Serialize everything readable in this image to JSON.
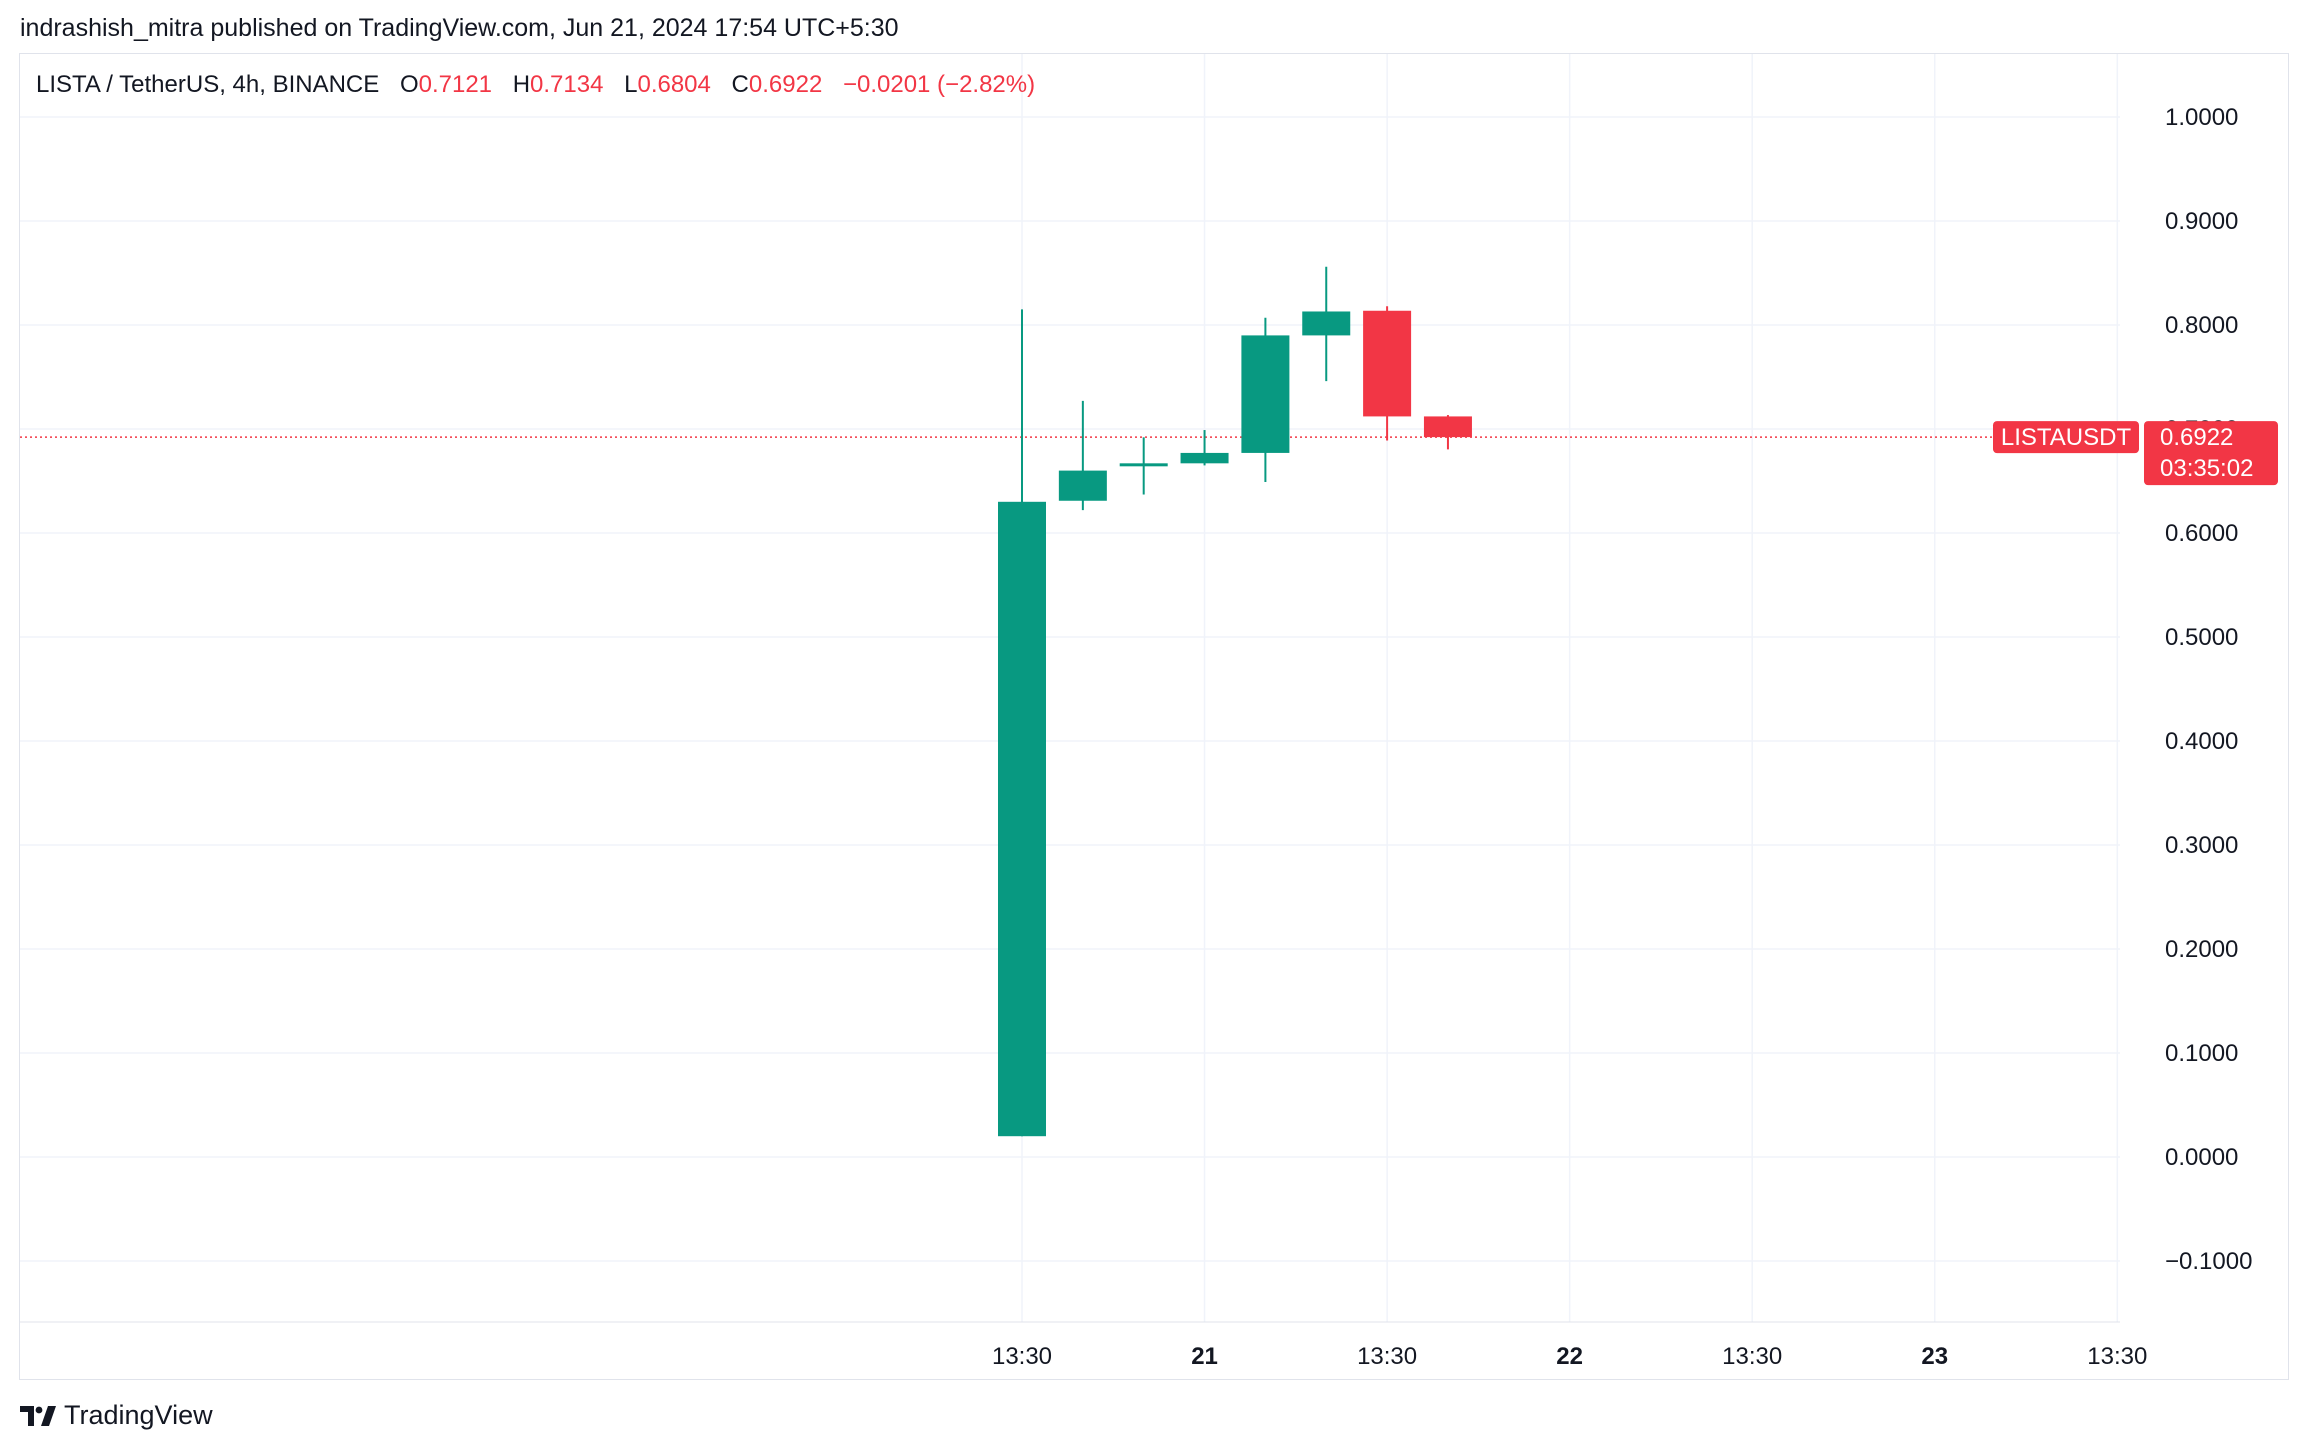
{
  "header": {
    "published_by": "indrashish_mitra published on TradingView.com, Jun 21, 2024 17:54 UTC+5:30"
  },
  "legend": {
    "symbol": "LISTA / TetherUS, 4h, BINANCE",
    "open_label": "O",
    "open_value": "0.7121",
    "high_label": "H",
    "high_value": "0.7134",
    "low_label": "L",
    "low_value": "0.6804",
    "close_label": "C",
    "close_value": "0.6922",
    "change": "−0.0201 (−2.82%)"
  },
  "price_tag": {
    "symbol_label": "LISTAUSDT",
    "price": "0.6922",
    "countdown": "03:35:02",
    "color": "#f23645"
  },
  "footer": {
    "brand": "TradingView"
  },
  "colors": {
    "up": "#089981",
    "down": "#f23645",
    "grid": "#f0f3fa"
  },
  "chart_data": {
    "type": "candlestick",
    "y_ticks": [
      "1.0000",
      "0.9000",
      "0.8000",
      "0.7000",
      "0.6000",
      "0.5000",
      "0.4000",
      "0.3000",
      "0.2000",
      "0.1000",
      "0.0000",
      "−0.1000"
    ],
    "ylim": [
      -0.16,
      1.06
    ],
    "x_ticks": [
      {
        "label": "13:30",
        "bold": false,
        "slot": 0
      },
      {
        "label": "21",
        "bold": true,
        "slot": 3
      },
      {
        "label": "13:30",
        "bold": false,
        "slot": 6
      },
      {
        "label": "22",
        "bold": true,
        "slot": 9
      },
      {
        "label": "13:30",
        "bold": false,
        "slot": 12
      },
      {
        "label": "23",
        "bold": true,
        "slot": 15
      },
      {
        "label": "13:30",
        "bold": false,
        "slot": 18
      }
    ],
    "candles": [
      {
        "open": 0.02,
        "high": 0.815,
        "low": 0.02,
        "close": 0.63
      },
      {
        "open": 0.631,
        "high": 0.727,
        "low": 0.622,
        "close": 0.66
      },
      {
        "open": 0.665,
        "high": 0.692,
        "low": 0.637,
        "close": 0.667
      },
      {
        "open": 0.667,
        "high": 0.699,
        "low": 0.665,
        "close": 0.677
      },
      {
        "open": 0.677,
        "high": 0.807,
        "low": 0.649,
        "close": 0.79
      },
      {
        "open": 0.79,
        "high": 0.856,
        "low": 0.746,
        "close": 0.813
      },
      {
        "open": 0.8137,
        "high": 0.818,
        "low": 0.689,
        "close": 0.7121
      },
      {
        "open": 0.7121,
        "high": 0.7134,
        "low": 0.6804,
        "close": 0.6922
      }
    ],
    "last_price": 0.6922
  }
}
